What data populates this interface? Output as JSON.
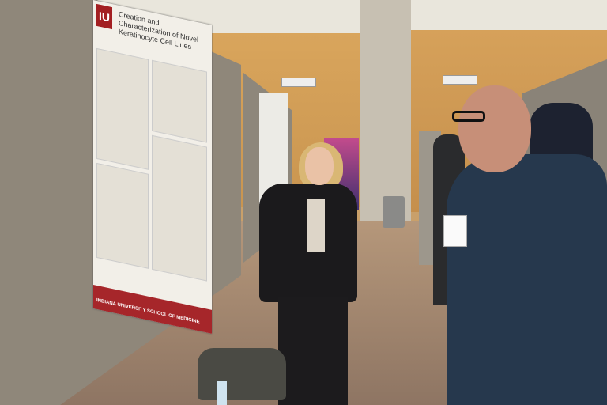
{
  "poster": {
    "logo_text": "IU",
    "title": "Creation and Characterization of Novel Keratinocyte Cell Lines",
    "footer": "INDIANA UNIVERSITY SCHOOL OF MEDICINE"
  },
  "colors": {
    "iu_crimson": "#a31f22",
    "wood_wall": "#d6a15a",
    "board_gray": "#8f877a"
  }
}
